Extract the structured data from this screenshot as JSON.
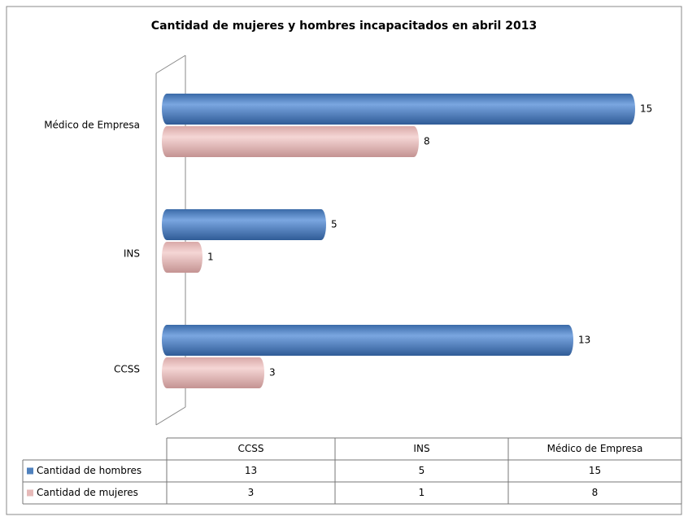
{
  "chart_data": {
    "type": "bar",
    "orientation": "horizontal",
    "title": "Cantidad de mujeres y hombres incapacitados en  abril 2013",
    "categories": [
      "CCSS",
      "INS",
      "Médico de Empresa"
    ],
    "series": [
      {
        "name": "Cantidad de hombres",
        "color": "#4f81bd",
        "values": [
          13,
          5,
          15
        ]
      },
      {
        "name": "Cantidad de mujeres",
        "color": "#e6b9b8",
        "values": [
          3,
          1,
          8
        ]
      }
    ],
    "data_table": true
  }
}
